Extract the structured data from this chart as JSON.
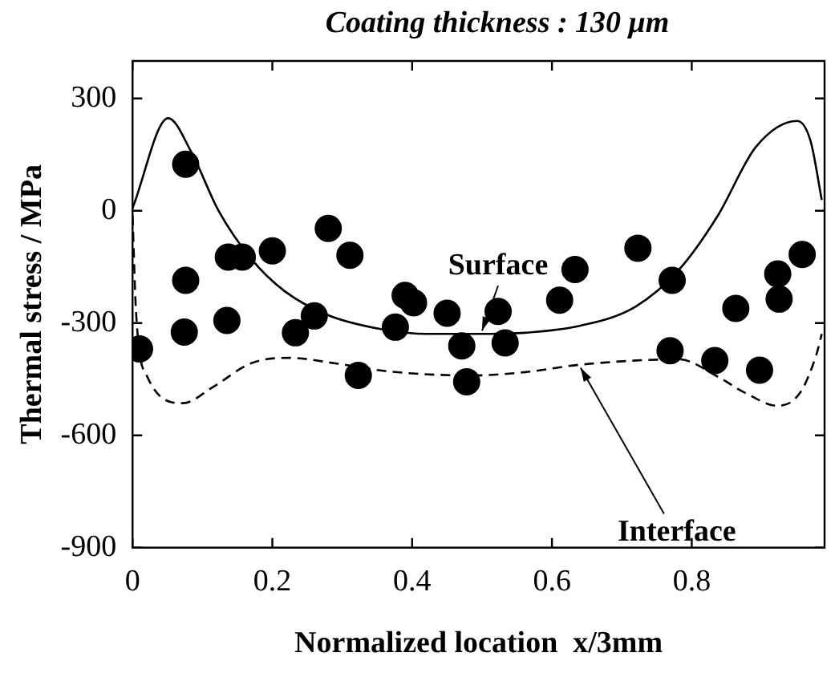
{
  "chart_data": {
    "type": "scatter",
    "title": "Coating thickness : 130 μm",
    "xlabel": "Normalized location  x/3mm",
    "ylabel": "Thermal stress / MPa",
    "xlim": [
      0,
      0.99
    ],
    "xticks": [
      0,
      0.2,
      0.4,
      0.6,
      0.8
    ],
    "ylim": [
      -900,
      400
    ],
    "yticks": [
      -900,
      -600,
      -300,
      0,
      300
    ],
    "grid": false,
    "legend": false,
    "series": [
      {
        "color": "#000000",
        "marker": "circle",
        "x": [
          0.01,
          0.076,
          0.076,
          0.074,
          0.135,
          0.137,
          0.157,
          0.2,
          0.233,
          0.26,
          0.28,
          0.311,
          0.323,
          0.376,
          0.39,
          0.402,
          0.45,
          0.471,
          0.478,
          0.523,
          0.533,
          0.611,
          0.633,
          0.723,
          0.772,
          0.769,
          0.833,
          0.863,
          0.897,
          0.923,
          0.925,
          0.958
        ],
        "values": [
          -369,
          124,
          -186,
          -324,
          -293,
          -124,
          -124,
          -107,
          -326,
          -281,
          -47,
          -119,
          -440,
          -311,
          -226,
          -246,
          -274,
          -361,
          -457,
          -269,
          -353,
          -239,
          -157,
          -100,
          -186,
          -374,
          -400,
          -261,
          -426,
          -169,
          -236,
          -117
        ]
      },
      {
        "type": "line",
        "name": "Surface",
        "color": "#000000",
        "line_style": "solid",
        "marker": "none",
        "x": [
          0,
          0.051,
          0.084,
          0.123,
          0.17,
          0.217,
          0.28,
          0.358,
          0.421,
          0.5,
          0.562,
          0.641,
          0.719,
          0.782,
          0.837,
          0.892,
          0.951,
          0.97,
          0.986
        ],
        "values": [
          7,
          247,
          157,
          0,
          -129,
          -214,
          -279,
          -317,
          -329,
          -329,
          -326,
          -307,
          -257,
          -157,
          -14,
          171,
          240,
          186,
          29
        ]
      },
      {
        "type": "line",
        "name": "Interface",
        "color": "#000000",
        "line_style": "dashed",
        "marker": "none",
        "x": [
          0,
          0.005,
          0.021,
          0.072,
          0.115,
          0.17,
          0.225,
          0.288,
          0.366,
          0.484,
          0.562,
          0.641,
          0.782,
          0.837,
          0.876,
          0.923,
          0.955,
          0.978,
          0.986
        ],
        "values": [
          -14,
          -271,
          -443,
          -514,
          -471,
          -407,
          -393,
          -407,
          -429,
          -440,
          -431,
          -411,
          -397,
          -443,
          -486,
          -521,
          -486,
          -386,
          -329
        ]
      }
    ]
  }
}
